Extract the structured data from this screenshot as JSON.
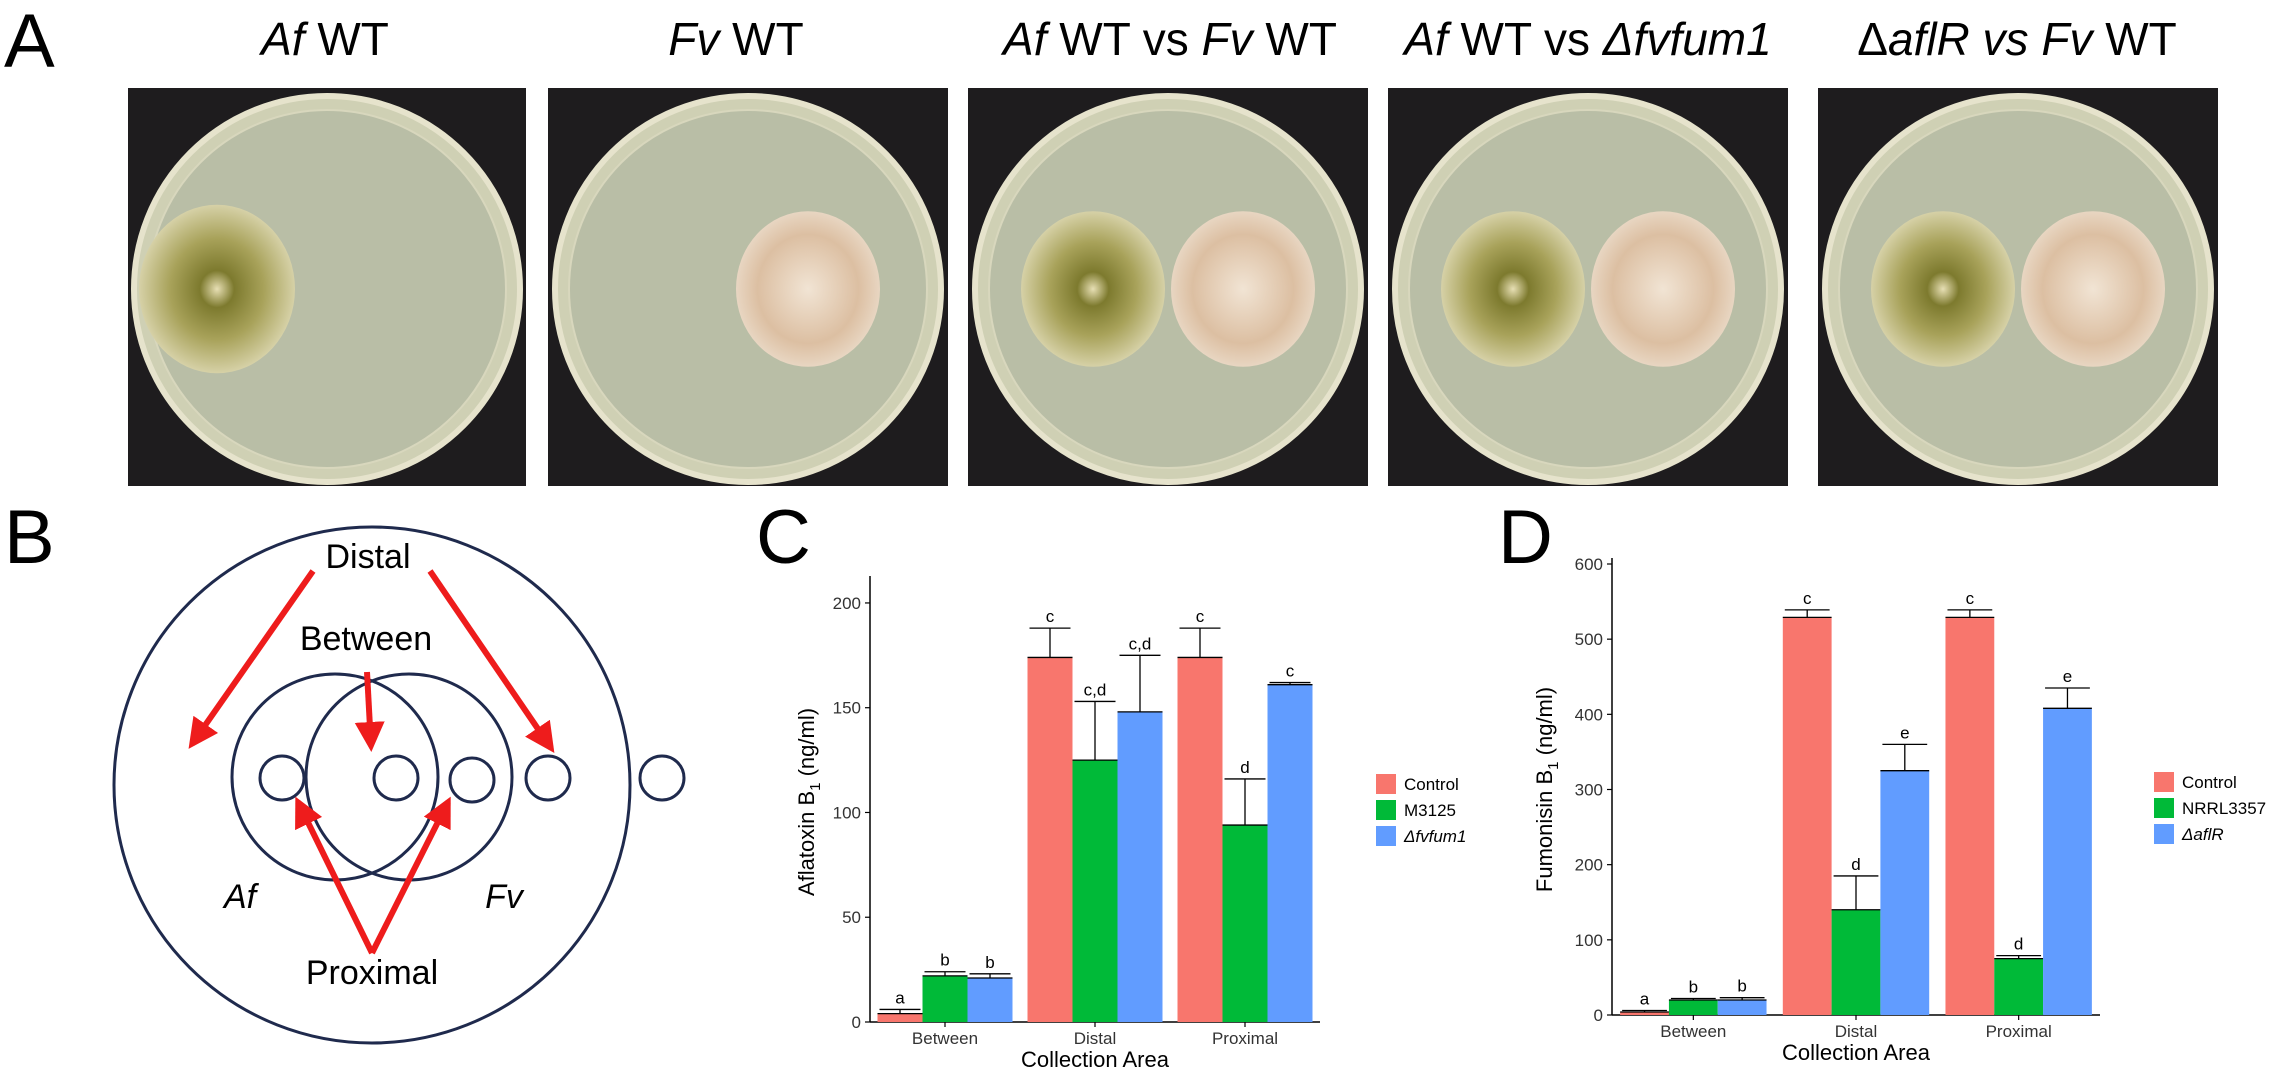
{
  "panels": {
    "a": "A",
    "b": "B",
    "c": "C",
    "d": "D"
  },
  "photos": [
    {
      "title_parts": [
        {
          "text": "Af",
          "italic": true
        },
        {
          "text": " WT",
          "italic": false
        }
      ],
      "colonies": [
        "af"
      ]
    },
    {
      "title_parts": [
        {
          "text": "Fv",
          "italic": true
        },
        {
          "text": " WT",
          "italic": false
        }
      ],
      "colonies": [
        "fv"
      ]
    },
    {
      "title_parts": [
        {
          "text": "Af",
          "italic": true
        },
        {
          "text": " WT vs ",
          "italic": false
        },
        {
          "text": "Fv",
          "italic": true
        },
        {
          "text": " WT",
          "italic": false
        }
      ],
      "colonies": [
        "af",
        "fv"
      ]
    },
    {
      "title_parts": [
        {
          "text": "Af",
          "italic": true
        },
        {
          "text": " WT vs ",
          "italic": false
        },
        {
          "text": "Δfvfum1",
          "italic": true
        }
      ],
      "colonies": [
        "af",
        "fv"
      ]
    },
    {
      "title_parts": [
        {
          "text": "Δ",
          "italic": false
        },
        {
          "text": "aflR vs ",
          "italic": true
        },
        {
          "text": "Fv",
          "italic": true
        },
        {
          "text": " WT",
          "italic": false
        }
      ],
      "colonies": [
        "af",
        "fv"
      ]
    }
  ],
  "diagram": {
    "labels": {
      "distal": "Distal",
      "between": "Between",
      "proximal": "Proximal",
      "af": "Af",
      "fv": "Fv"
    },
    "colors": {
      "outline": "#1f2a4d",
      "arrow": "#ee1c1c"
    }
  },
  "chart_data": [
    {
      "type": "bar",
      "panel": "C",
      "categories": [
        "Between",
        "Distal",
        "Proximal"
      ],
      "xlabel": "Collection Area",
      "ylabel_parts": [
        "Aflatoxin B",
        "1",
        " (ng/ml)"
      ],
      "ylim": [
        0,
        210
      ],
      "yticks": [
        0,
        50,
        100,
        150,
        200
      ],
      "grid": false,
      "legend_position": "right",
      "series": [
        {
          "name": "Control",
          "color": "#f8766d",
          "italic": false,
          "values": [
            4,
            174,
            174
          ],
          "errors": [
            2,
            14,
            14
          ],
          "letters": [
            "a",
            "c",
            "c"
          ]
        },
        {
          "name": "M3125",
          "color": "#00ba38",
          "italic": false,
          "values": [
            22,
            125,
            94
          ],
          "errors": [
            2,
            28,
            22
          ],
          "letters": [
            "b",
            "c,d",
            "d"
          ]
        },
        {
          "name": "Δfvfum1",
          "color": "#619cff",
          "italic": true,
          "values": [
            21,
            148,
            161
          ],
          "errors": [
            2,
            27,
            1
          ],
          "letters": [
            "b",
            "c,d",
            "c"
          ]
        }
      ]
    },
    {
      "type": "bar",
      "panel": "D",
      "categories": [
        "Between",
        "Distal",
        "Proximal"
      ],
      "xlabel": "Collection Area",
      "ylabel_parts": [
        "Fumonisin B",
        "1",
        " (ng/ml)"
      ],
      "ylim": [
        0,
        600
      ],
      "yticks": [
        0,
        100,
        200,
        300,
        400,
        500,
        600
      ],
      "grid": false,
      "legend_position": "right",
      "series": [
        {
          "name": "Control",
          "color": "#f8766d",
          "italic": false,
          "values": [
            4,
            529,
            529
          ],
          "errors": [
            2,
            10,
            10
          ],
          "letters": [
            "a",
            "c",
            "c"
          ]
        },
        {
          "name": "NRRL3357",
          "color": "#00ba38",
          "italic": false,
          "values": [
            20,
            140,
            75
          ],
          "errors": [
            2,
            45,
            4
          ],
          "letters": [
            "b",
            "d",
            "d"
          ]
        },
        {
          "name": "ΔaflR",
          "color": "#619cff",
          "italic": true,
          "values": [
            20,
            325,
            408
          ],
          "errors": [
            3,
            35,
            27
          ],
          "letters": [
            "b",
            "e",
            "e"
          ]
        }
      ]
    }
  ]
}
